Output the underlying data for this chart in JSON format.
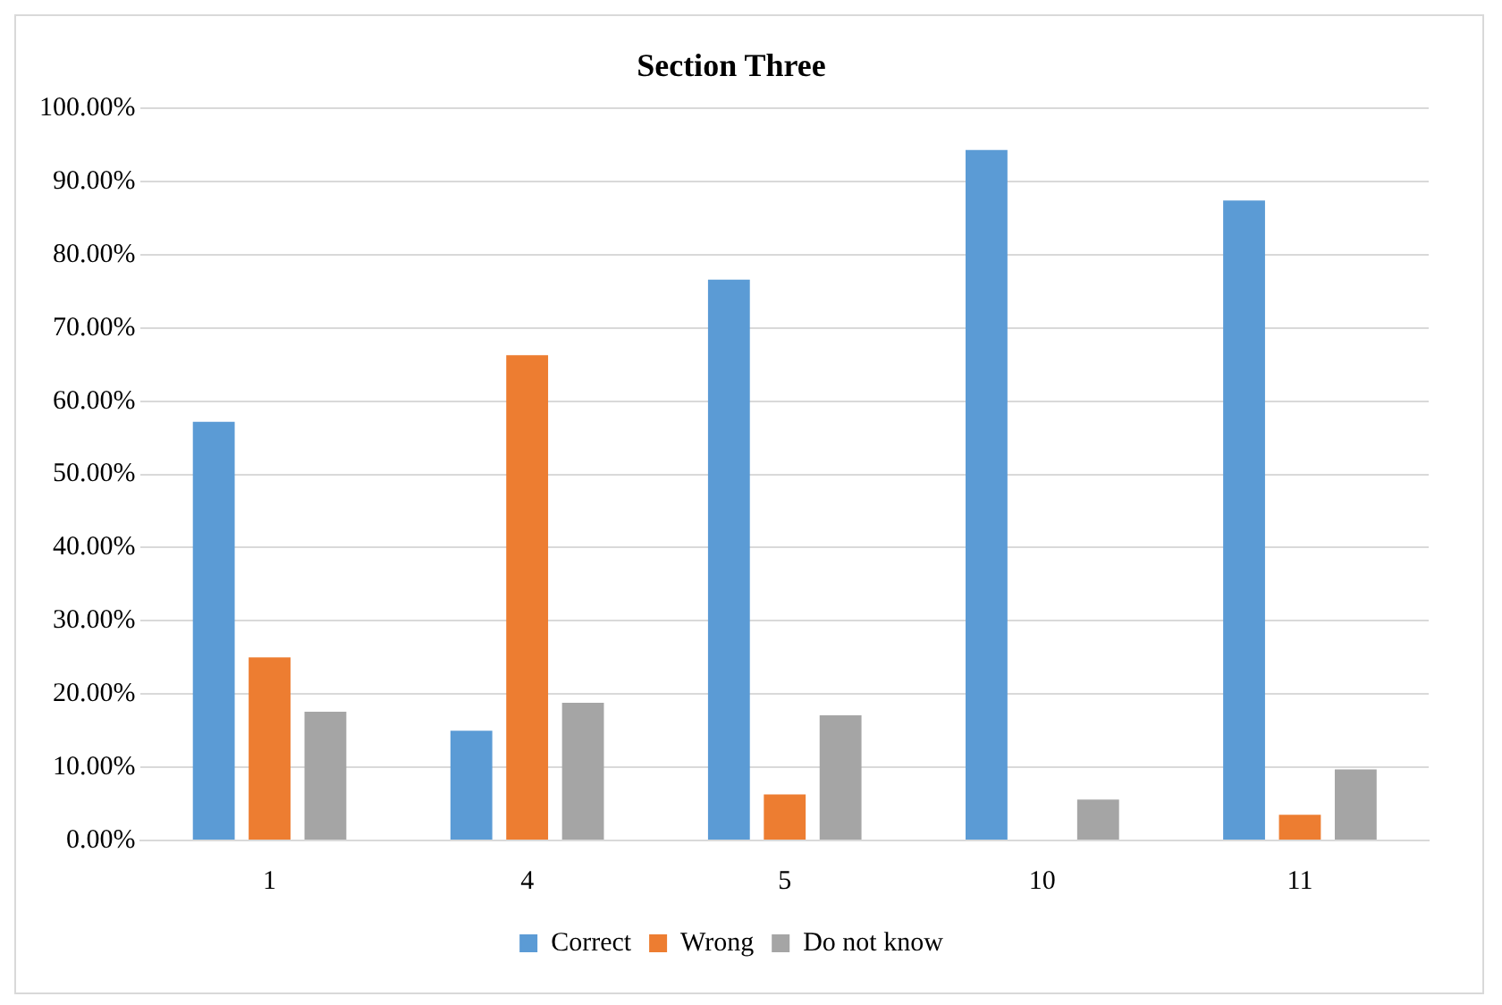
{
  "chart_data": {
    "type": "bar",
    "title": "Section Three",
    "categories": [
      "1",
      "4",
      "5",
      "10",
      "11"
    ],
    "series": [
      {
        "name": "Correct",
        "color": "#5b9bd5",
        "values": [
          57.2,
          15.0,
          76.6,
          94.3,
          87.4
        ]
      },
      {
        "name": "Wrong",
        "color": "#ed7d31",
        "values": [
          25.0,
          66.3,
          6.3,
          0,
          3.5
        ]
      },
      {
        "name": "Do not know",
        "color": "#a5a5a5",
        "values": [
          17.6,
          18.8,
          17.1,
          5.6,
          9.7
        ]
      }
    ],
    "ylim": [
      0,
      100
    ],
    "yticks": [
      {
        "value": 0,
        "label": "0.00%"
      },
      {
        "value": 10,
        "label": "10.00%"
      },
      {
        "value": 20,
        "label": "20.00%"
      },
      {
        "value": 30,
        "label": "30.00%"
      },
      {
        "value": 40,
        "label": "40.00%"
      },
      {
        "value": 50,
        "label": "50.00%"
      },
      {
        "value": 60,
        "label": "60.00%"
      },
      {
        "value": 70,
        "label": "70.00%"
      },
      {
        "value": 80,
        "label": "80.00%"
      },
      {
        "value": 90,
        "label": "90.00%"
      },
      {
        "value": 100,
        "label": "100.00%"
      }
    ],
    "grid": "y",
    "legend": "bottom"
  }
}
